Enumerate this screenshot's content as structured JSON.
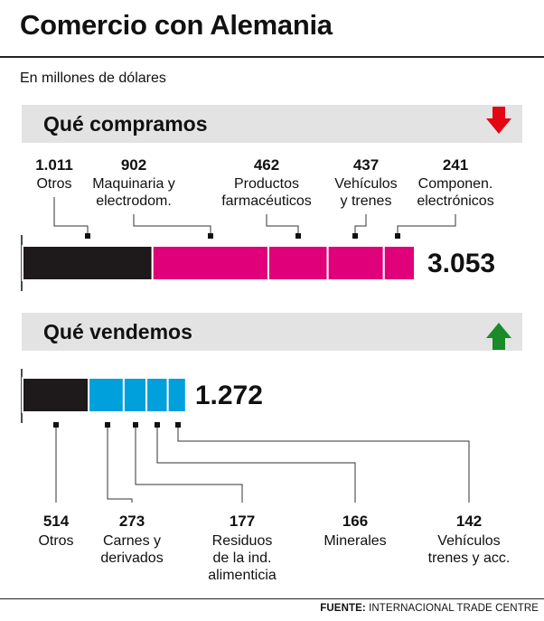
{
  "header": {
    "title": "Comercio con Alemania",
    "subtitle": "En millones de dólares",
    "source_label": "FUENTE:",
    "source_text": "INTERNACIONAL TRADE CENTRE"
  },
  "colors": {
    "otros": "#1e1a1b",
    "imports": "#e0007a",
    "exports": "#00a0dd",
    "down_arrow": "#e30613",
    "up_arrow": "#1a8a2a",
    "band": "#e3e3e3"
  },
  "chart_data": [
    {
      "type": "bar",
      "title": "Qué compramos",
      "direction_icon": "down-arrow-icon",
      "total": 3053,
      "total_label": "3.053",
      "categories": [
        "Otros",
        "Maquinaria y electrodom.",
        "Productos farmacéuticos",
        "Vehículos y trenes",
        "Componen. electrónicos"
      ],
      "values": [
        1011,
        902,
        462,
        437,
        241
      ],
      "value_labels": [
        "1.011",
        "902",
        "462",
        "437",
        "241"
      ],
      "label_lines": [
        [
          "Otros"
        ],
        [
          "Maquinaria y",
          "electrodom."
        ],
        [
          "Productos",
          "farmacéuticos"
        ],
        [
          "Vehículos",
          "y trenes"
        ],
        [
          "Componen.",
          "electrónicos"
        ]
      ]
    },
    {
      "type": "bar",
      "title": "Qué vendemos",
      "direction_icon": "up-arrow-icon",
      "total": 1272,
      "total_label": "1.272",
      "categories": [
        "Otros",
        "Carnes y derivados",
        "Residuos de la ind. alimenticia",
        "Minerales",
        "Vehículos trenes y acc."
      ],
      "values": [
        514,
        273,
        177,
        166,
        142
      ],
      "value_labels": [
        "514",
        "273",
        "177",
        "166",
        "142"
      ],
      "label_lines": [
        [
          "Otros"
        ],
        [
          "Carnes y",
          "derivados"
        ],
        [
          "Residuos",
          "de la ind.",
          "alimenticia"
        ],
        [
          "Minerales"
        ],
        [
          "Vehículos",
          "trenes y acc."
        ]
      ]
    }
  ]
}
